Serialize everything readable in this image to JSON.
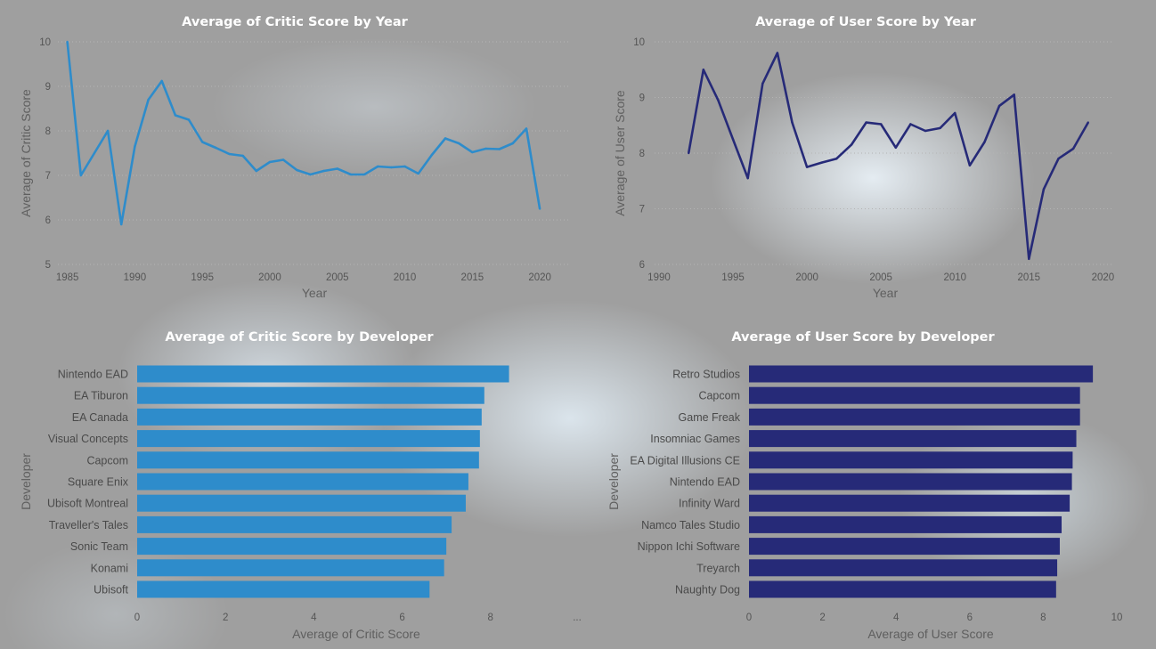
{
  "colors": {
    "critic": "#2e8ccb",
    "user": "#262a78",
    "background": "#9f9f9f",
    "title": "#ffffff"
  },
  "chart_data": [
    {
      "id": "critic-by-year",
      "type": "line",
      "title": "Average of Critic Score by Year",
      "xlabel": "Year",
      "ylabel": "Average of Critic Score",
      "xlim": [
        1984.3,
        2022.3
      ],
      "ylim": [
        5,
        10
      ],
      "xticks": [
        1985,
        1990,
        1995,
        2000,
        2005,
        2010,
        2015,
        2020
      ],
      "yticks": [
        5,
        6,
        7,
        8,
        9,
        10
      ],
      "grid": true,
      "color": "#2e8ccb",
      "x": [
        1985,
        1986,
        1988,
        1989,
        1990,
        1991,
        1992,
        1993,
        1994,
        1995,
        1996,
        1997,
        1998,
        1999,
        2000,
        2001,
        2002,
        2003,
        2004,
        2005,
        2006,
        2007,
        2008,
        2009,
        2010,
        2011,
        2012,
        2013,
        2014,
        2015,
        2016,
        2017,
        2018,
        2019,
        2020
      ],
      "y": [
        10.0,
        7.0,
        8.0,
        5.9,
        7.65,
        8.7,
        9.12,
        8.35,
        8.25,
        7.75,
        7.62,
        7.48,
        7.44,
        7.1,
        7.3,
        7.35,
        7.12,
        7.02,
        7.1,
        7.15,
        7.02,
        7.02,
        7.2,
        7.18,
        7.2,
        7.04,
        7.46,
        7.83,
        7.72,
        7.52,
        7.6,
        7.59,
        7.72,
        8.05,
        6.25
      ]
    },
    {
      "id": "user-by-year",
      "type": "line",
      "title": "Average of User Score by Year",
      "xlabel": "Year",
      "ylabel": "Average of User Score",
      "xlim": [
        1989.7,
        2020.7
      ],
      "ylim": [
        6,
        10
      ],
      "xticks": [
        1990,
        1995,
        2000,
        2005,
        2010,
        2015,
        2020
      ],
      "yticks": [
        6,
        7,
        8,
        9,
        10
      ],
      "grid": true,
      "color": "#262a78",
      "x": [
        1992,
        1993,
        1994,
        1995,
        1996,
        1997,
        1998,
        1999,
        2000,
        2001,
        2002,
        2003,
        2004,
        2005,
        2006,
        2007,
        2008,
        2009,
        2010,
        2011,
        2012,
        2013,
        2014,
        2015,
        2016,
        2017,
        2018,
        2019
      ],
      "y": [
        8.0,
        9.5,
        8.95,
        8.25,
        7.55,
        9.25,
        9.8,
        8.55,
        7.75,
        7.83,
        7.9,
        8.15,
        8.55,
        8.52,
        8.1,
        8.52,
        8.4,
        8.45,
        8.72,
        7.78,
        8.2,
        8.85,
        9.05,
        6.1,
        7.35,
        7.9,
        8.08,
        8.55
      ]
    },
    {
      "id": "critic-by-developer",
      "type": "bar",
      "orientation": "horizontal",
      "title": "Average of Critic Score by Developer",
      "xlabel": "Average of Critic Score",
      "ylabel": "Developer",
      "xlim": [
        0,
        9.8
      ],
      "xticks": [
        0,
        2,
        4,
        6,
        8
      ],
      "xticks_trailing_label": "...",
      "color": "#2e8ccb",
      "categories": [
        "Nintendo EAD",
        "EA Tiburon",
        "EA Canada",
        "Visual Concepts",
        "Capcom",
        "Square Enix",
        "Ubisoft Montreal",
        "Traveller's Tales",
        "Sonic Team",
        "Konami",
        "Ubisoft"
      ],
      "values": [
        8.42,
        7.86,
        7.8,
        7.76,
        7.74,
        7.5,
        7.44,
        7.12,
        7.0,
        6.95,
        6.62
      ]
    },
    {
      "id": "user-by-developer",
      "type": "bar",
      "orientation": "horizontal",
      "title": "Average of User Score by Developer",
      "xlabel": "Average of User Score",
      "ylabel": "Developer",
      "xlim": [
        0,
        10.8
      ],
      "xticks": [
        0,
        2,
        4,
        6,
        8,
        10
      ],
      "color": "#262a78",
      "categories": [
        "Retro Studios",
        "Capcom",
        "Game Freak",
        "Insomniac Games",
        "EA Digital Illusions CE",
        "Nintendo EAD",
        "Infinity Ward",
        "Namco Tales Studio",
        "Nippon Ichi Software",
        "Treyarch",
        "Naughty Dog"
      ],
      "values": [
        9.35,
        9.0,
        9.0,
        8.9,
        8.8,
        8.78,
        8.72,
        8.5,
        8.45,
        8.38,
        8.35
      ]
    }
  ]
}
